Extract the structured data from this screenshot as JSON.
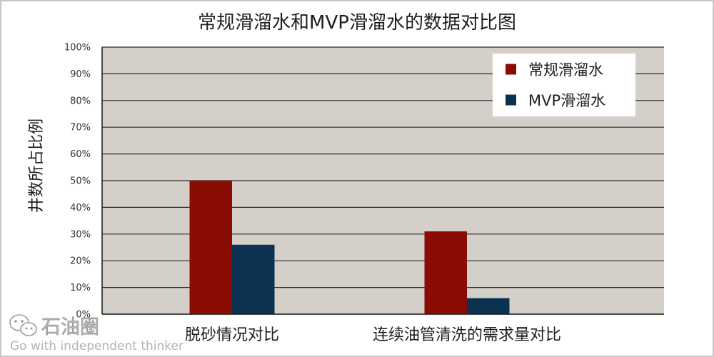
{
  "chart_data": {
    "type": "bar",
    "title": "常规滑溜水和MVP滑溜水的数据对比图",
    "ylabel": "井数所占比例",
    "categories": [
      "脱砂情况对比",
      "连续油管清洗的需求量对比"
    ],
    "series": [
      {
        "name": "常规滑溜水",
        "color": "#8a0d03",
        "values": [
          50,
          31
        ]
      },
      {
        "name": "MVP滑溜水",
        "color": "#0c3252",
        "values": [
          26,
          6
        ]
      }
    ],
    "ylim": [
      0,
      100
    ],
    "yticks": [
      "0%",
      "10%",
      "20%",
      "30%",
      "40%",
      "50%",
      "60%",
      "70%",
      "80%",
      "90%",
      "100%"
    ],
    "grid": true,
    "legend": "top-right",
    "plot_background": "#d4cfc9"
  },
  "watermark": {
    "icon": "wechat-icon",
    "name": "石油圈",
    "slogan": "Go with independent thinker"
  }
}
